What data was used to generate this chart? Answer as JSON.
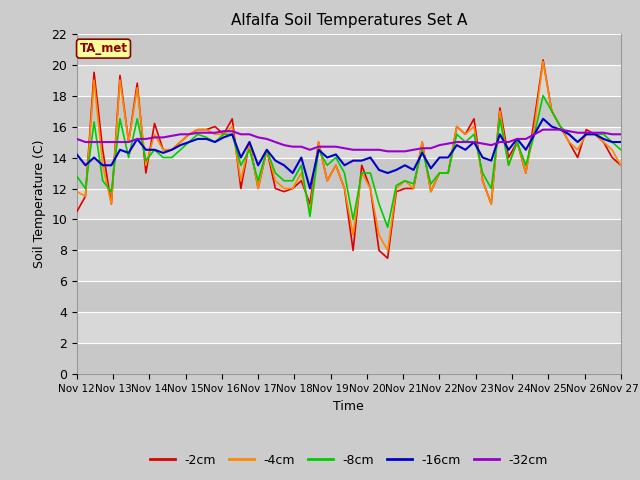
{
  "title": "Alfalfa Soil Temperatures Set A",
  "xlabel": "Time",
  "ylabel": "Soil Temperature (C)",
  "ylim": [
    0,
    22
  ],
  "yticks": [
    0,
    2,
    4,
    6,
    8,
    10,
    12,
    14,
    16,
    18,
    20,
    22
  ],
  "x_labels": [
    "Nov 12",
    "Nov 13",
    "Nov 14",
    "Nov 15",
    "Nov 16",
    "Nov 17",
    "Nov 18",
    "Nov 19",
    "Nov 20",
    "Nov 21",
    "Nov 22",
    "Nov 23",
    "Nov 24",
    "Nov 25",
    "Nov 26",
    "Nov 27"
  ],
  "background_color": "#cccccc",
  "plot_bg_color_dark": "#c8c8c8",
  "plot_bg_color_light": "#e0e0e0",
  "annotation_text": "TA_met",
  "annotation_bg": "#ffff99",
  "annotation_border": "#8b0000",
  "colors": {
    "2cm": "#dd0000",
    "4cm": "#ff8800",
    "8cm": "#00cc00",
    "16cm": "#0000cc",
    "32cm": "#9900cc"
  },
  "legend_labels": [
    "-2cm",
    "-4cm",
    "-8cm",
    "-16cm",
    "-32cm"
  ],
  "series_2cm": [
    10.5,
    11.5,
    19.5,
    14.5,
    11.0,
    19.3,
    15.0,
    18.8,
    13.0,
    16.2,
    14.5,
    14.5,
    15.0,
    15.5,
    15.8,
    15.8,
    16.0,
    15.5,
    16.5,
    12.0,
    15.0,
    12.0,
    14.5,
    12.0,
    11.8,
    12.0,
    12.5,
    11.0,
    15.0,
    12.5,
    13.5,
    12.0,
    8.0,
    13.5,
    12.0,
    8.0,
    7.5,
    11.8,
    12.0,
    12.0,
    15.0,
    11.8,
    13.0,
    13.0,
    16.0,
    15.5,
    16.5,
    12.5,
    11.0,
    17.2,
    14.0,
    15.0,
    13.0,
    16.5,
    20.3,
    17.0,
    16.0,
    15.0,
    14.0,
    15.8,
    15.5,
    15.0,
    14.0,
    13.5
  ],
  "series_4cm": [
    11.8,
    11.5,
    19.0,
    13.5,
    11.0,
    19.0,
    15.0,
    18.5,
    13.5,
    15.5,
    14.5,
    14.5,
    15.0,
    15.5,
    15.8,
    15.8,
    15.5,
    15.5,
    16.0,
    12.5,
    15.0,
    12.0,
    14.5,
    12.5,
    12.0,
    12.0,
    13.0,
    10.5,
    15.0,
    12.5,
    13.5,
    12.0,
    9.0,
    13.0,
    12.0,
    9.0,
    8.0,
    12.0,
    12.5,
    12.0,
    15.0,
    11.8,
    13.0,
    13.0,
    16.0,
    15.5,
    16.0,
    12.5,
    11.0,
    17.0,
    13.5,
    15.0,
    13.0,
    16.0,
    20.2,
    17.0,
    16.0,
    15.0,
    14.5,
    15.5,
    15.5,
    15.0,
    14.5,
    13.5
  ],
  "series_8cm": [
    12.8,
    12.0,
    16.3,
    12.5,
    11.8,
    16.5,
    14.0,
    16.5,
    13.8,
    14.5,
    14.0,
    14.0,
    14.5,
    15.0,
    15.5,
    15.3,
    15.0,
    15.5,
    15.5,
    13.5,
    14.5,
    12.5,
    14.5,
    13.0,
    12.5,
    12.5,
    13.5,
    10.2,
    14.5,
    13.5,
    14.0,
    13.0,
    10.0,
    13.0,
    13.0,
    11.0,
    9.5,
    12.2,
    12.5,
    12.3,
    14.5,
    12.3,
    13.0,
    13.0,
    15.5,
    15.0,
    15.5,
    13.0,
    12.0,
    16.5,
    13.5,
    15.0,
    13.5,
    15.5,
    18.0,
    17.0,
    16.0,
    15.5,
    15.0,
    15.5,
    15.5,
    15.5,
    15.0,
    14.5
  ],
  "series_16cm": [
    14.2,
    13.5,
    14.0,
    13.5,
    13.5,
    14.5,
    14.3,
    15.2,
    14.5,
    14.5,
    14.3,
    14.5,
    14.8,
    15.0,
    15.2,
    15.2,
    15.0,
    15.3,
    15.5,
    14.0,
    15.0,
    13.5,
    14.5,
    13.8,
    13.5,
    13.0,
    14.0,
    12.0,
    14.5,
    14.0,
    14.2,
    13.5,
    13.8,
    13.8,
    14.0,
    13.2,
    13.0,
    13.2,
    13.5,
    13.2,
    14.3,
    13.3,
    14.0,
    14.0,
    14.8,
    14.5,
    15.0,
    14.0,
    13.8,
    15.5,
    14.5,
    15.2,
    14.5,
    15.5,
    16.5,
    16.0,
    15.8,
    15.5,
    15.0,
    15.5,
    15.5,
    15.2,
    15.0,
    15.0
  ],
  "series_32cm": [
    15.2,
    15.0,
    15.0,
    15.0,
    15.0,
    15.0,
    15.0,
    15.2,
    15.2,
    15.3,
    15.3,
    15.4,
    15.5,
    15.5,
    15.6,
    15.6,
    15.6,
    15.7,
    15.7,
    15.5,
    15.5,
    15.3,
    15.2,
    15.0,
    14.8,
    14.7,
    14.7,
    14.5,
    14.7,
    14.7,
    14.7,
    14.6,
    14.5,
    14.5,
    14.5,
    14.5,
    14.4,
    14.4,
    14.4,
    14.5,
    14.6,
    14.6,
    14.8,
    14.9,
    15.0,
    15.0,
    15.0,
    14.9,
    14.8,
    15.0,
    15.0,
    15.2,
    15.2,
    15.5,
    15.8,
    15.8,
    15.8,
    15.7,
    15.6,
    15.6,
    15.6,
    15.6,
    15.5,
    15.5
  ]
}
